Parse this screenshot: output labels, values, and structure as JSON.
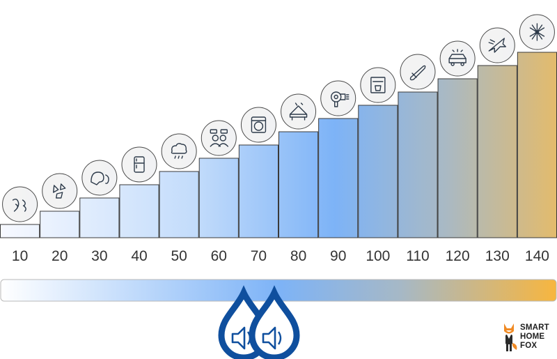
{
  "chart_data": {
    "type": "bar",
    "categories": [
      "10",
      "20",
      "30",
      "40",
      "50",
      "60",
      "70",
      "80",
      "90",
      "100",
      "110",
      "120",
      "130",
      "140"
    ],
    "values": [
      10,
      20,
      30,
      40,
      50,
      60,
      70,
      80,
      90,
      100,
      110,
      120,
      130,
      140
    ],
    "ylim": [
      0,
      140
    ],
    "xlabel": "",
    "ylabel": "",
    "title": "",
    "grid": false,
    "icons": [
      "whisper-icon",
      "falling-leaves-icon",
      "conversation-ear-icon",
      "refrigerator-icon",
      "rain-cloud-icon",
      "talking-people-icon",
      "washing-machine-icon",
      "piano-icon",
      "hair-dryer-icon",
      "coffee-machine-icon",
      "chainsaw-icon",
      "car-horn-icon",
      "jet-fighter-icon",
      "fireworks-icon"
    ],
    "colors": {
      "low": "#f7f9ff",
      "mid": "#7db3f7",
      "high": "#f2b84b",
      "bar_border": "#3a3a3a",
      "drop": "#0f4f9e"
    }
  },
  "legend_bar": {
    "colors": [
      "#ffffff",
      "#7db3f7",
      "#f7b63f"
    ]
  },
  "logo": {
    "line1": "SMART",
    "line2": "HOME",
    "line3": "FOX"
  }
}
